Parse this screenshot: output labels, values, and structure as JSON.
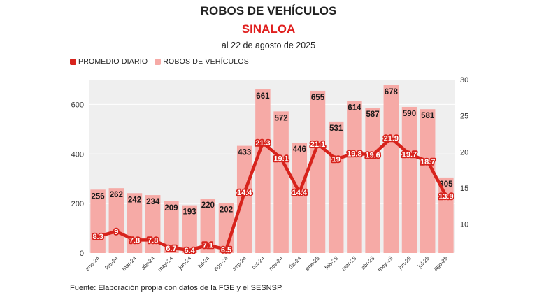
{
  "title": "ROBOS DE VEHÍCULOS",
  "subtitle": "SINALOA",
  "dateline": "al 22 de agosto de 2025",
  "source": "Fuente: Elaboración propia con datos de la FGE y el SESNSP.",
  "legend": {
    "line_label": "PROMEDIO DIARIO",
    "bar_label": "ROBOS DE VEHÍCULOS"
  },
  "colors": {
    "bar": "#f6aaa6",
    "line": "#d7231c",
    "plot_bg": "#efefef",
    "grid": "#ffffff",
    "title_accent": "#e0201f"
  },
  "chart_data": {
    "type": "bar",
    "categories": [
      "ene-24",
      "feb-24",
      "mar-24",
      "abr-24",
      "may-24",
      "jun-24",
      "jul-24",
      "ago-24",
      "sep-24",
      "oct-24",
      "nov-24",
      "dic-24",
      "ene-25",
      "feb-25",
      "mar-25",
      "abr-25",
      "may-25",
      "jun-25",
      "jul-25",
      "ago-25"
    ],
    "series": [
      {
        "name": "ROBOS DE VEHÍCULOS",
        "type": "bar",
        "axis": "left",
        "values": [
          256,
          262,
          242,
          234,
          209,
          193,
          220,
          202,
          433,
          661,
          572,
          446,
          655,
          531,
          614,
          587,
          678,
          590,
          581,
          305
        ]
      },
      {
        "name": "PROMEDIO DIARIO",
        "type": "line",
        "axis": "right",
        "values": [
          8.3,
          9,
          7.8,
          7.8,
          6.7,
          6.4,
          7.1,
          6.5,
          14.4,
          21.3,
          19.1,
          14.4,
          21.1,
          19,
          19.8,
          19.6,
          21.9,
          19.7,
          18.7,
          13.9
        ]
      }
    ],
    "y_left": {
      "ticks": [
        0,
        200,
        400,
        600
      ],
      "lim": [
        0,
        700
      ]
    },
    "y_right": {
      "ticks": [
        10,
        15,
        20,
        25,
        30
      ],
      "lim": [
        6,
        30
      ]
    },
    "grid": true,
    "legend_position": "top-left"
  }
}
